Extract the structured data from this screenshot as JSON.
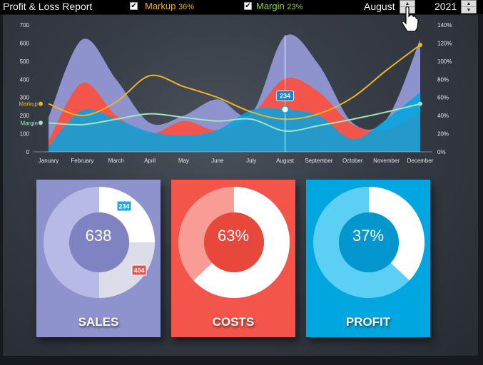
{
  "header": {
    "title": "Profit & Loss Report",
    "markup_label": "Markup",
    "markup_pct": "36%",
    "margin_label": "Margin",
    "margin_pct": "23%",
    "month": "August",
    "year": "2021"
  },
  "colors": {
    "sales": "#8f93cd",
    "costs": "#f4554a",
    "profit": "#00a6e0",
    "markup": "#f0b323",
    "margin": "#9ee6c0",
    "markup_text": "#f0b323",
    "margin_text": "#92d050"
  },
  "chart_data": {
    "type": "area",
    "categories": [
      "January",
      "February",
      "March",
      "April",
      "May",
      "June",
      "July",
      "August",
      "September",
      "October",
      "November",
      "December"
    ],
    "y_ticks_left": [
      "0",
      "100",
      "200",
      "300",
      "400",
      "500",
      "600",
      "700"
    ],
    "y_ticks_right": [
      "0%",
      "20%",
      "40%",
      "60%",
      "80%",
      "100%",
      "120%",
      "140%"
    ],
    "ylim": [
      0,
      700
    ],
    "ylim_right": [
      0,
      140
    ],
    "series": [
      {
        "name": "Sales",
        "kind": "area",
        "values": [
          190,
          620,
          400,
          160,
          200,
          290,
          210,
          638,
          480,
          160,
          180,
          620
        ]
      },
      {
        "name": "Costs",
        "kind": "area",
        "values": [
          60,
          380,
          200,
          100,
          170,
          120,
          200,
          404,
          330,
          150,
          120,
          220
        ]
      },
      {
        "name": "Profit",
        "kind": "area",
        "values": [
          30,
          230,
          180,
          110,
          90,
          120,
          230,
          234,
          200,
          70,
          180,
          330
        ]
      },
      {
        "name": "Markup",
        "kind": "line",
        "values": [
          53,
          40,
          55,
          84,
          72,
          60,
          44,
          36,
          42,
          60,
          90,
          118
        ]
      },
      {
        "name": "Margin",
        "kind": "line",
        "values": [
          32,
          30,
          36,
          42,
          38,
          34,
          36,
          23,
          29,
          36,
          44,
          53
        ]
      }
    ],
    "selected_index": 7,
    "selected_label": "234",
    "line_labels": [
      "Markup",
      "Margin"
    ]
  },
  "cards": {
    "sales": {
      "label": "SALES",
      "value": "638",
      "costs_badge": "404",
      "profit_badge": "234"
    },
    "costs": {
      "label": "COSTS",
      "value": "63%",
      "fraction": 0.63
    },
    "profit": {
      "label": "PROFIT",
      "value": "37%",
      "fraction": 0.37
    }
  }
}
